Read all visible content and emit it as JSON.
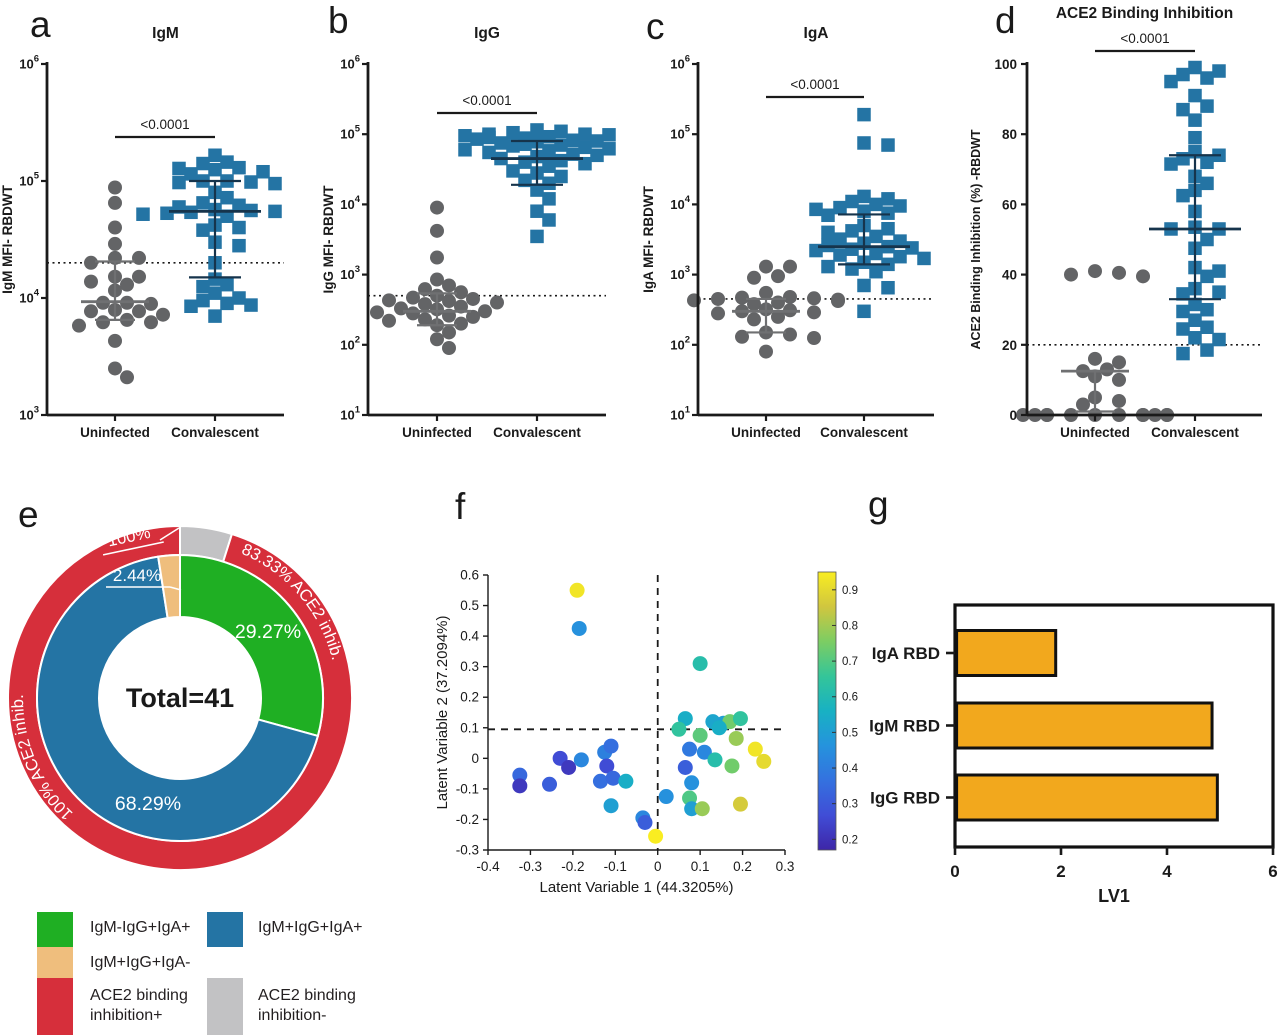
{
  "panel_letters": {
    "a": "a",
    "b": "b",
    "c": "c",
    "d": "d",
    "e": "e",
    "f": "f",
    "g": "g"
  },
  "legend": {
    "items": [
      {
        "label": "IgM-IgG+IgA+",
        "color": "#1FAF23"
      },
      {
        "label": "IgM+IgG+IgA-",
        "color": "#EFBE7D"
      },
      {
        "label": "ACE2 binding inhibition+",
        "color": "#D62F3B"
      },
      {
        "label": "IgM+IgG+IgA+",
        "color": "#2474A4"
      },
      {
        "label": "ACE2 binding inhibition-",
        "color": "#C2C2C4"
      }
    ]
  },
  "chart_data": [
    {
      "panel": "a",
      "type": "dotplot",
      "title": "IgM",
      "ylabel": "IgM MFI- RBDWT",
      "sig_label": "<0.0001",
      "yaxis": {
        "scale": "log",
        "min_exp": 3,
        "max_exp": 6
      },
      "cutoff": 20000,
      "categories": [
        "Uninfected",
        "Convalescent"
      ],
      "series": [
        {
          "name": "Uninfected",
          "marker": "circle",
          "color": "#636466",
          "bar_color": "#6F7072",
          "median": 9300,
          "whisker_low": 6500,
          "whisker_high": 20500,
          "values": [
            88000,
            65000,
            40000,
            29000,
            22000,
            22000,
            20000,
            15200,
            15200,
            13800,
            13000,
            11600,
            9100,
            9100,
            8900,
            7900,
            7700,
            7700,
            7200,
            6500,
            6200,
            6200,
            5800,
            4300,
            2500,
            2100
          ]
        },
        {
          "name": "Convalescent",
          "marker": "square",
          "color": "#2474A4",
          "bar_color": "#16344C",
          "median": 55000,
          "whisker_low": 15000,
          "whisker_high": 100000,
          "values": [
            166000,
            145000,
            141000,
            130000,
            128000,
            125000,
            120000,
            115000,
            100000,
            100000,
            98000,
            97000,
            95000,
            80000,
            72000,
            65000,
            62000,
            60000,
            57000,
            56000,
            55000,
            54000,
            53000,
            52000,
            50000,
            42000,
            40000,
            38000,
            30000,
            28000,
            20000,
            14500,
            13000,
            12500,
            11000,
            10000,
            9500,
            9000,
            8700,
            8500,
            7000
          ]
        }
      ]
    },
    {
      "panel": "b",
      "type": "dotplot",
      "title": "IgG",
      "ylabel": "IgG MFI- RBDWT",
      "sig_label": "<0.0001",
      "yaxis": {
        "scale": "log",
        "min_exp": 1,
        "max_exp": 6
      },
      "cutoff": 500,
      "categories": [
        "Uninfected",
        "Convalescent"
      ],
      "series": [
        {
          "name": "Uninfected",
          "marker": "circle",
          "color": "#636466",
          "bar_color": "#6F7072",
          "median": 300,
          "whisker_low": 190,
          "whisker_high": 540,
          "values": [
            9000,
            4200,
            1750,
            850,
            700,
            620,
            560,
            500,
            470,
            450,
            430,
            420,
            400,
            380,
            350,
            330,
            320,
            300,
            290,
            280,
            260,
            250,
            230,
            220,
            200,
            190,
            150,
            120,
            90
          ]
        },
        {
          "name": "Convalescent",
          "marker": "square",
          "color": "#2474A4",
          "bar_color": "#16344C",
          "median": 45000,
          "whisker_low": 19000,
          "whisker_high": 80000,
          "values": [
            115000,
            110000,
            105000,
            100000,
            100000,
            98000,
            95000,
            92000,
            90000,
            88000,
            85000,
            82000,
            80000,
            78000,
            75000,
            72000,
            70000,
            68000,
            65000,
            62000,
            60000,
            58000,
            55000,
            52000,
            50000,
            48000,
            45000,
            42000,
            40000,
            38000,
            35000,
            30000,
            28000,
            25000,
            22000,
            20000,
            16000,
            12000,
            8000,
            6000,
            3500
          ]
        }
      ]
    },
    {
      "panel": "c",
      "type": "dotplot",
      "title": "IgA",
      "ylabel": "IgA MFI- RBDWT",
      "sig_label": "<0.0001",
      "yaxis": {
        "scale": "log",
        "min_exp": 1,
        "max_exp": 6
      },
      "cutoff": 450,
      "categories": [
        "Uninfected",
        "Convalescent"
      ],
      "series": [
        {
          "name": "Uninfected",
          "marker": "circle",
          "color": "#636466",
          "bar_color": "#6F7072",
          "median": 300,
          "whisker_low": 150,
          "whisker_high": 450,
          "values": [
            1300,
            1300,
            950,
            900,
            550,
            480,
            470,
            460,
            450,
            440,
            430,
            420,
            400,
            380,
            320,
            310,
            300,
            290,
            280,
            250,
            230,
            150,
            140,
            130,
            125,
            80
          ]
        },
        {
          "name": "Convalescent",
          "marker": "square",
          "color": "#2474A4",
          "bar_color": "#16344C",
          "median": 2500,
          "whisker_low": 1400,
          "whisker_high": 7200,
          "values": [
            190000,
            75000,
            70000,
            13000,
            12000,
            11000,
            10000,
            9500,
            9000,
            8500,
            8000,
            7500,
            7000,
            5000,
            4500,
            4200,
            4000,
            3500,
            3200,
            3000,
            2800,
            2600,
            2500,
            2400,
            2300,
            2200,
            2000,
            1900,
            1800,
            1700,
            1500,
            1400,
            1300,
            1200,
            1100,
            700,
            650,
            300
          ]
        }
      ]
    },
    {
      "panel": "d",
      "type": "dotplot",
      "title": "ACE2 Binding Inhibition",
      "ylabel": "ACE2 Binding Inhibition (%) -RBDWT",
      "sig_label": "<0.0001",
      "yaxis": {
        "scale": "linear",
        "min": 0,
        "max": 100,
        "ticks": [
          0,
          20,
          40,
          60,
          80,
          100
        ]
      },
      "cutoff": 20,
      "categories": [
        "Uninfected",
        "Convalescent"
      ],
      "series": [
        {
          "name": "Uninfected",
          "marker": "circle",
          "color": "#636466",
          "bar_color": "#6F7072",
          "median": 12.5,
          "whisker_low": 1,
          "whisker_high": 12.5,
          "values": [
            41,
            40.5,
            40,
            39.5,
            16,
            15,
            13,
            12.5,
            11,
            10,
            5,
            4,
            3,
            0,
            0,
            0,
            0,
            0,
            0,
            0,
            0,
            0,
            0,
            0,
            0
          ]
        },
        {
          "name": "Convalescent",
          "marker": "square",
          "color": "#2474A4",
          "bar_color": "#16344C",
          "median": 53,
          "whisker_low": 33,
          "whisker_high": 74,
          "values": [
            99,
            98,
            97,
            96,
            95,
            91,
            88,
            87,
            84,
            79,
            75,
            74,
            73,
            72,
            71.5,
            68,
            66,
            64,
            62.5,
            58,
            53.5,
            53,
            53,
            50,
            47.5,
            42,
            41,
            39.5,
            36,
            35,
            34.5,
            31.5,
            30,
            29.5,
            27,
            25,
            24.5,
            22,
            21.5,
            18.5,
            17.5
          ]
        }
      ]
    },
    {
      "panel": "e",
      "type": "donut",
      "total_label": "Total=41",
      "inner": [
        {
          "label": "IgM-IgG+IgA+",
          "pct": 29.27,
          "color": "#1FAF23",
          "text": "29.27%"
        },
        {
          "label": "IgM+IgG+IgA+",
          "pct": 68.29,
          "color": "#2474A4",
          "text": "68.29%"
        },
        {
          "label": "IgM+IgG+IgA-",
          "pct": 2.44,
          "color": "#EFBE7D",
          "text": "2.44%"
        }
      ],
      "outer": [
        {
          "label": "ACE2 binding inhibition-",
          "pct": 4.88,
          "color": "#C2C2C4"
        },
        {
          "label": "ACE2 binding inhibition+",
          "pct": 95.12,
          "color": "#D62F3B"
        }
      ],
      "arc_label_right": "83.33% ACE2 inhib.",
      "arc_label_left": "100% ACE2 inhib.",
      "callout_top": "100%"
    },
    {
      "panel": "f",
      "type": "scatter",
      "xlabel": "Latent Variable 1 (44.3205%)",
      "ylabel": "Latent Variable 2 (37.2094%)",
      "xlim": [
        -0.4,
        0.3
      ],
      "ylim": [
        -0.3,
        0.6
      ],
      "xticks": [
        -0.4,
        -0.3,
        -0.2,
        -0.1,
        0,
        0.1,
        0.2,
        0.3
      ],
      "yticks": [
        -0.3,
        -0.2,
        -0.1,
        0,
        0.1,
        0.2,
        0.3,
        0.4,
        0.5,
        0.6
      ],
      "dash_x": 0,
      "dash_y": 0.095,
      "colorbar": {
        "min": 0.17,
        "max": 0.95,
        "ticks": [
          0.2,
          0.3,
          0.4,
          0.5,
          0.6,
          0.7,
          0.8,
          0.9
        ]
      },
      "points": [
        [
          -0.19,
          0.55,
          0.95
        ],
        [
          -0.185,
          0.425,
          0.45
        ],
        [
          0.1,
          0.31,
          0.62
        ],
        [
          0.065,
          0.13,
          0.55
        ],
        [
          0.05,
          0.095,
          0.65
        ],
        [
          0.13,
          0.12,
          0.52
        ],
        [
          0.155,
          0.115,
          0.5
        ],
        [
          0.17,
          0.12,
          0.75
        ],
        [
          0.195,
          0.13,
          0.65
        ],
        [
          0.1,
          0.075,
          0.72
        ],
        [
          0.185,
          0.065,
          0.8
        ],
        [
          0.23,
          0.03,
          0.95
        ],
        [
          0.075,
          0.03,
          0.38
        ],
        [
          0.11,
          0.02,
          0.42
        ],
        [
          0.135,
          -0.005,
          0.62
        ],
        [
          0.25,
          -0.01,
          0.92
        ],
        [
          0.175,
          -0.025,
          0.75
        ],
        [
          0.065,
          -0.03,
          0.3
        ],
        [
          0.08,
          -0.08,
          0.45
        ],
        [
          0.02,
          -0.125,
          0.45
        ],
        [
          0.075,
          -0.13,
          0.7
        ],
        [
          0.08,
          -0.165,
          0.5
        ],
        [
          0.105,
          -0.165,
          0.8
        ],
        [
          0.195,
          -0.15,
          0.88
        ],
        [
          -0.325,
          -0.055,
          0.33
        ],
        [
          -0.325,
          -0.09,
          0.2
        ],
        [
          -0.255,
          -0.085,
          0.3
        ],
        [
          -0.23,
          0,
          0.25
        ],
        [
          -0.21,
          -0.03,
          0.2
        ],
        [
          -0.18,
          -0.005,
          0.42
        ],
        [
          -0.125,
          0.02,
          0.4
        ],
        [
          -0.11,
          0.04,
          0.35
        ],
        [
          -0.12,
          -0.025,
          0.25
        ],
        [
          -0.135,
          -0.075,
          0.35
        ],
        [
          -0.105,
          -0.065,
          0.33
        ],
        [
          -0.075,
          -0.075,
          0.55
        ],
        [
          -0.11,
          -0.155,
          0.5
        ],
        [
          -0.035,
          -0.195,
          0.42
        ],
        [
          -0.03,
          -0.21,
          0.3
        ],
        [
          -0.005,
          -0.255,
          0.97
        ],
        [
          0.145,
          0.1,
          0.55
        ]
      ]
    },
    {
      "panel": "g",
      "type": "hbar",
      "xlabel": "LV1",
      "xlim": [
        0,
        6
      ],
      "xticks": [
        0,
        2,
        4,
        6
      ],
      "bar_color": "#F2A81D",
      "categories": [
        "IgA RBD",
        "IgM RBD",
        "IgG RBD"
      ],
      "values": [
        1.9,
        4.85,
        4.95
      ]
    }
  ]
}
